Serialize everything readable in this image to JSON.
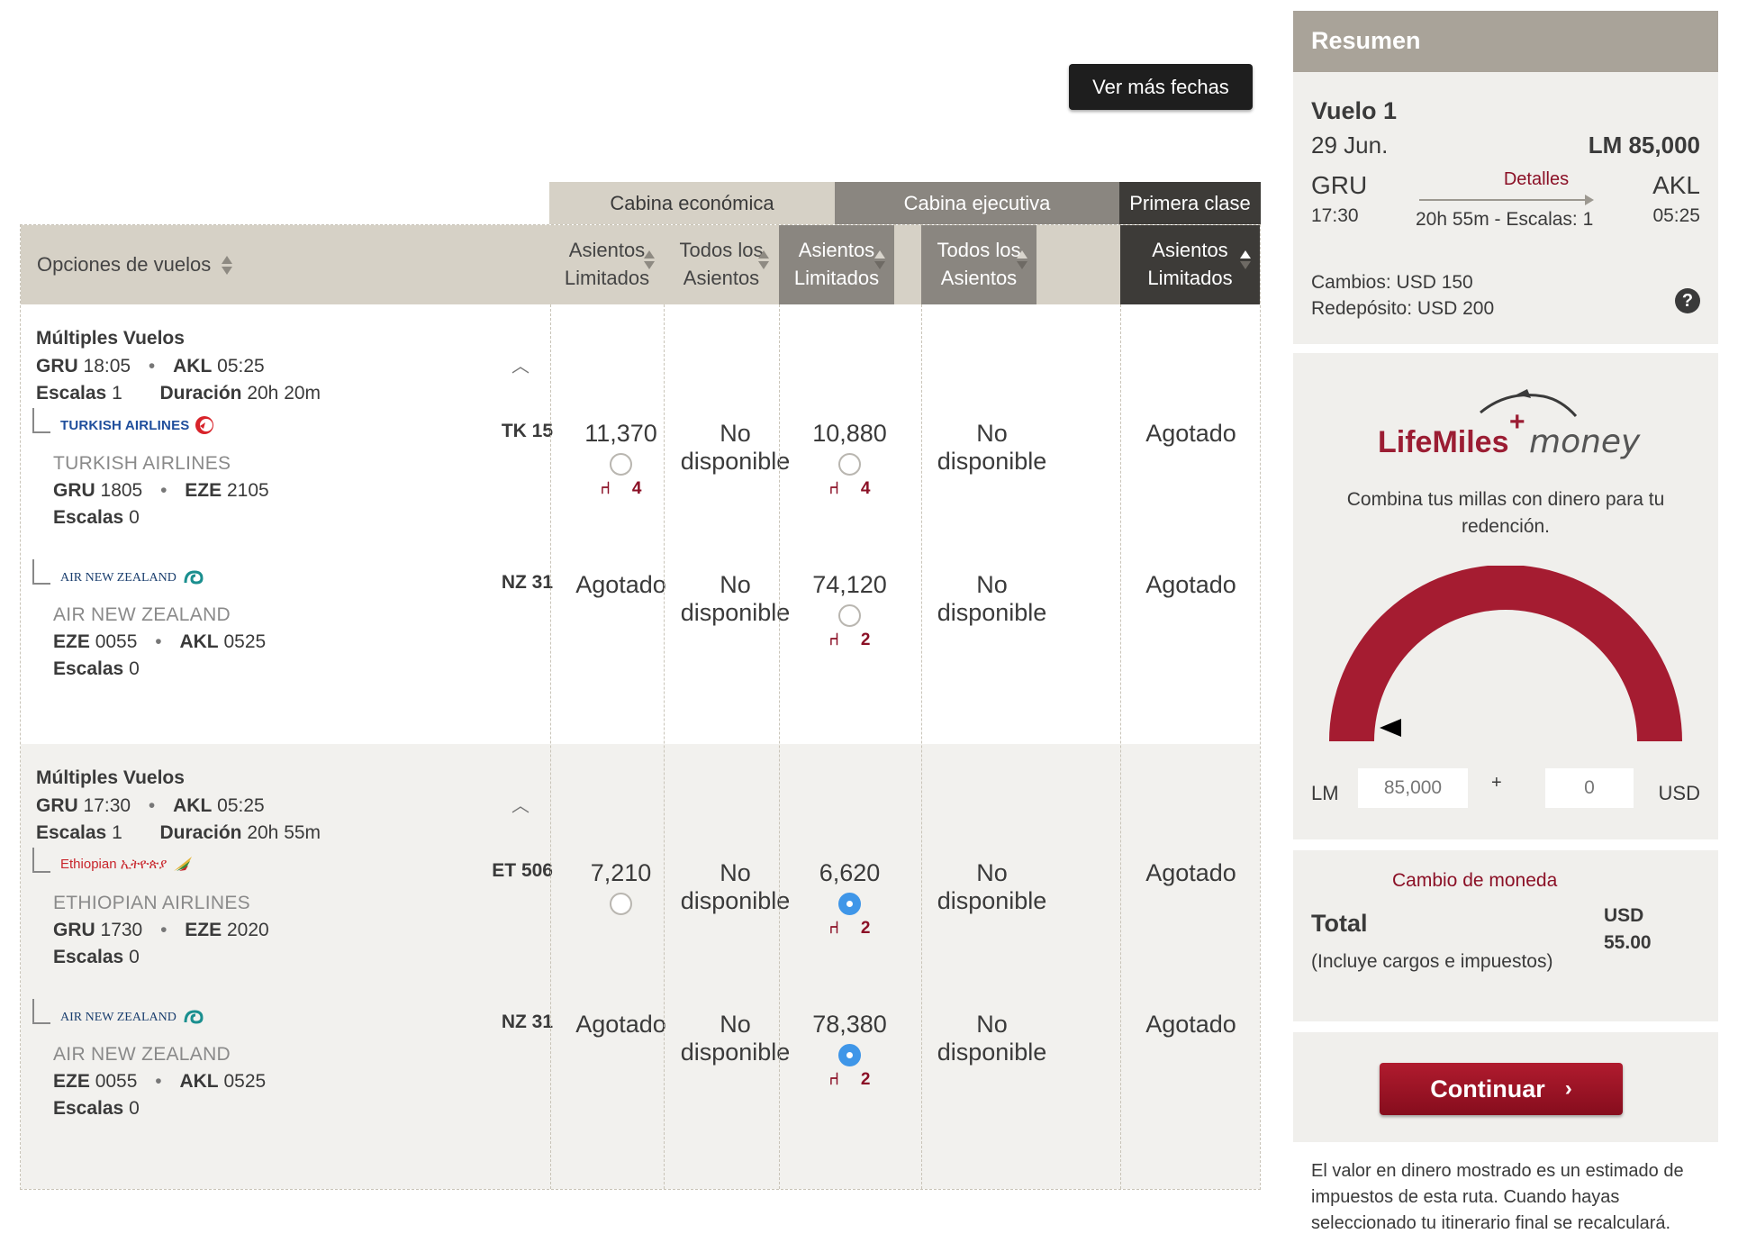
{
  "toolbar": {
    "more_dates": "Ver más fechas"
  },
  "cabins": {
    "economy": "Cabina económica",
    "executive": "Cabina ejecutiva",
    "first": "Primera clase"
  },
  "table_header": {
    "options": "Opciones de vuelos",
    "columns": [
      {
        "line1": "Asientos",
        "line2": "Limitados"
      },
      {
        "line1": "Todos los",
        "line2": "Asientos"
      },
      {
        "line1": "Asientos",
        "line2": "Limitados"
      },
      {
        "line1": "Todos los",
        "line2": "Asientos"
      },
      {
        "line1": "Asientos",
        "line2": "Limitados"
      }
    ]
  },
  "groups": [
    {
      "title": "Múltiples Vuelos",
      "origin": "GRU",
      "dep": "18:05",
      "dest": "AKL",
      "arr": "05:25",
      "stops_label": "Escalas",
      "stops": "1",
      "duration_label": "Duración",
      "duration": "20h 20m",
      "segments": [
        {
          "logo_text": "TURKISH AIRLINES",
          "airline": "TURKISH AIRLINES",
          "flight": "TK 15",
          "from": "GRU",
          "from_time": "1805",
          "to": "EZE",
          "to_time": "2105",
          "stops_label": "Escalas",
          "stops": "0",
          "cells": [
            {
              "text": "11,370",
              "radio": true,
              "selected": false,
              "seats": "4"
            },
            {
              "text": "No disponible"
            },
            {
              "text": "10,880",
              "radio": true,
              "selected": false,
              "seats": "4"
            },
            {
              "text": "No disponible"
            },
            {
              "text": "Agotado"
            }
          ]
        },
        {
          "logo_text": "AIR NEW ZEALAND",
          "airline": "AIR NEW ZEALAND",
          "flight": "NZ 31",
          "from": "EZE",
          "from_time": "0055",
          "to": "AKL",
          "to_time": "0525",
          "stops_label": "Escalas",
          "stops": "0",
          "cells": [
            {
              "text": "Agotado"
            },
            {
              "text": "No disponible"
            },
            {
              "text": "74,120",
              "radio": true,
              "selected": false,
              "seats": "2"
            },
            {
              "text": "No disponible"
            },
            {
              "text": "Agotado"
            }
          ]
        }
      ]
    },
    {
      "title": "Múltiples Vuelos",
      "origin": "GRU",
      "dep": "17:30",
      "dest": "AKL",
      "arr": "05:25",
      "stops_label": "Escalas",
      "stops": "1",
      "duration_label": "Duración",
      "duration": "20h 55m",
      "segments": [
        {
          "logo_text": "Ethiopian ኢትዮጵያ",
          "airline": "ETHIOPIAN AIRLINES",
          "flight": "ET 506",
          "from": "GRU",
          "from_time": "1730",
          "to": "EZE",
          "to_time": "2020",
          "stops_label": "Escalas",
          "stops": "0",
          "cells": [
            {
              "text": "7,210",
              "radio": true,
              "selected": false,
              "seats": ""
            },
            {
              "text": "No disponible"
            },
            {
              "text": "6,620",
              "radio": true,
              "selected": true,
              "seats": "2"
            },
            {
              "text": "No disponible"
            },
            {
              "text": "Agotado"
            }
          ]
        },
        {
          "logo_text": "AIR NEW ZEALAND",
          "airline": "AIR NEW ZEALAND",
          "flight": "NZ 31",
          "from": "EZE",
          "from_time": "0055",
          "to": "AKL",
          "to_time": "0525",
          "stops_label": "Escalas",
          "stops": "0",
          "cells": [
            {
              "text": "Agotado"
            },
            {
              "text": "No disponible"
            },
            {
              "text": "78,380",
              "radio": true,
              "selected": true,
              "seats": "2"
            },
            {
              "text": "No disponible"
            },
            {
              "text": "Agotado"
            }
          ]
        }
      ]
    }
  ],
  "summary": {
    "title": "Resumen",
    "flight_title": "Vuelo 1",
    "date": "29 Jun.",
    "price": "LM 85,000",
    "from": "GRU",
    "from_time": "17:30",
    "to": "AKL",
    "to_time": "05:25",
    "details": "Detalles",
    "duration": "20h 55m - Escalas: 1",
    "changes": "Cambios: USD 150",
    "redeposit": "Redepósito: USD 200",
    "help": "?"
  },
  "lifemiles": {
    "logo_main": "LifeMiles",
    "logo_plus": "+",
    "logo_money": "money",
    "description": "Combina tus millas con dinero para tu redención.",
    "miles_level": 0.0,
    "lm_label": "LM",
    "lm_value": "85,000",
    "plus": "+",
    "usd_value": "0",
    "usd_label": "USD"
  },
  "total": {
    "currency_change": "Cambio de moneda",
    "label": "Total",
    "currency": "USD",
    "amount": "55.00",
    "note": "(Incluye cargos e impuestos)"
  },
  "actions": {
    "continue": "Continuar"
  },
  "footnote": "El valor en dinero mostrado es un estimado de impuestos de esta ruta. Cuando hayas seleccionado tu itinerario final se recalculará.",
  "colors": {
    "brand_red": "#8b1026",
    "selected_blue": "#3f96e8"
  }
}
